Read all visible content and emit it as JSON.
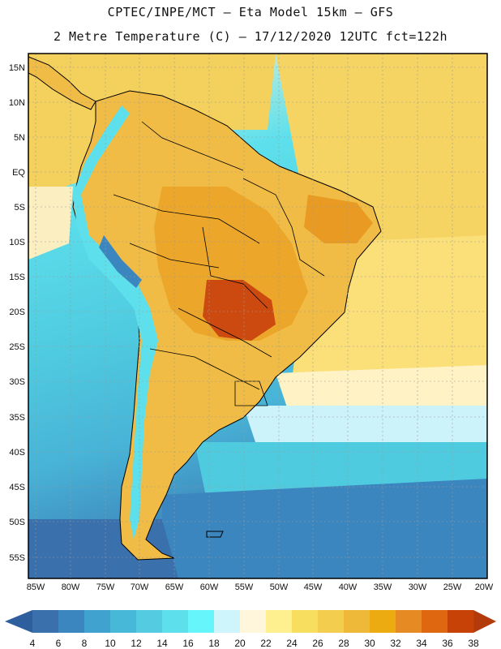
{
  "header": {
    "title_line1": "CPTEC/INPE/MCT —  Eta Model 15km — GFS",
    "title_line2": "2 Metre Temperature (C) — 17/12/2020 12UTC fct=122h"
  },
  "map": {
    "lat_labels": [
      "15N",
      "10N",
      "5N",
      "EQ",
      "5S",
      "10S",
      "15S",
      "20S",
      "25S",
      "30S",
      "35S",
      "40S",
      "45S",
      "50S",
      "55S"
    ],
    "lon_labels": [
      "85W",
      "80W",
      "75W",
      "70W",
      "65W",
      "60W",
      "55W",
      "50W",
      "45W",
      "40W",
      "35W",
      "30W",
      "25W",
      "20W"
    ],
    "ocean_color": "#58d8e6",
    "land_color": "#f0bc45"
  },
  "colorbar": {
    "labels": [
      "4",
      "6",
      "8",
      "10",
      "12",
      "14",
      "16",
      "18",
      "20",
      "22",
      "24",
      "26",
      "28",
      "30",
      "32",
      "34",
      "36",
      "38"
    ],
    "colors": [
      "#3a70ac",
      "#3c86bf",
      "#40a2cf",
      "#48b8d9",
      "#55cbe1",
      "#5de0ec",
      "#66f5fa",
      "#cdf5fb",
      "#fff6dc",
      "#fef08f",
      "#f7de5e",
      "#f2cd4e",
      "#eeb838",
      "#ecab10",
      "#e68a23",
      "#df6710",
      "#c64207"
    ],
    "left_arrow_color": "#2e5e9e",
    "right_arrow_color": "#b33a0a"
  }
}
